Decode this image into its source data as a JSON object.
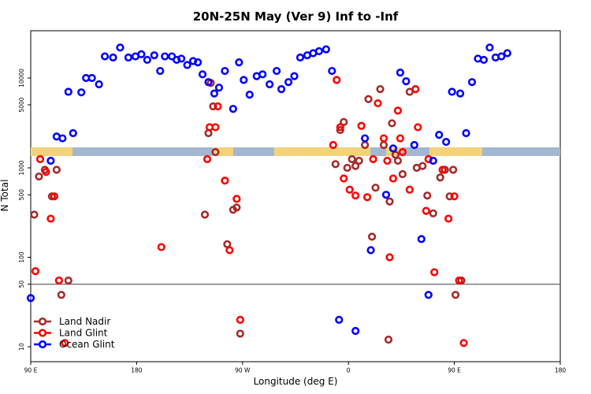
{
  "chart_data": {
    "type": "scatter",
    "title": "20N-25N May (Ver 9)   Inf to -Inf",
    "xlabel": "Longitude (deg E)",
    "ylabel": "N Total",
    "x_ticks": [
      "90 E",
      "180",
      "90 W",
      "0",
      "90 E",
      "180"
    ],
    "y_ticks_lower": [
      "10",
      "50",
      "100",
      "500",
      "1000"
    ],
    "y_ticks_upper": [
      "5000",
      "10000"
    ],
    "reference_line_value": 50,
    "legend": [
      {
        "label": "Land Nadir",
        "color": "#a52a2a"
      },
      {
        "label": "Land Glint",
        "color": "#ff0000"
      },
      {
        "label": "Ocean Glint",
        "color": "#0000ff"
      }
    ],
    "series": [
      {
        "name": "Land Nadir",
        "color": "#a52a2a",
        "points": [
          [
            93,
            300
          ],
          [
            97,
            800
          ],
          [
            102,
            950
          ],
          [
            108,
            480
          ],
          [
            112,
            950
          ],
          [
            116,
            38
          ],
          [
            122,
            55
          ],
          [
            238,
            300
          ],
          [
            241,
            2400
          ],
          [
            243,
            8800
          ],
          [
            245,
            4800
          ],
          [
            247,
            1500
          ],
          [
            257,
            140
          ],
          [
            262,
            340
          ],
          [
            265,
            360
          ],
          [
            268,
            14
          ],
          [
            349,
            1100
          ],
          [
            353,
            2600
          ],
          [
            356,
            3200
          ],
          [
            359,
            1000
          ],
          [
            363,
            1250
          ],
          [
            366,
            1050
          ],
          [
            369,
            1200
          ],
          [
            374,
            1800
          ],
          [
            377,
            5800
          ],
          [
            380,
            170
          ],
          [
            383,
            600
          ],
          [
            387,
            7500
          ],
          [
            390,
            1800
          ],
          [
            394,
            12
          ],
          [
            395,
            420
          ],
          [
            397,
            3100
          ],
          [
            400,
            1400
          ],
          [
            402,
            1200
          ],
          [
            406,
            850
          ],
          [
            412,
            7000
          ],
          [
            418,
            1000
          ],
          [
            423,
            1050
          ],
          [
            427,
            490
          ],
          [
            432,
            310
          ],
          [
            438,
            780
          ],
          [
            442,
            950
          ],
          [
            446,
            480
          ],
          [
            449,
            950
          ],
          [
            451,
            38
          ],
          [
            456,
            55
          ]
        ]
      },
      {
        "name": "Land Glint",
        "color": "#ff0000",
        "points": [
          [
            94,
            70
          ],
          [
            98,
            1250
          ],
          [
            103,
            900
          ],
          [
            107,
            270
          ],
          [
            110,
            480
          ],
          [
            114,
            55
          ],
          [
            119,
            11
          ],
          [
            201,
            130
          ],
          [
            240,
            1250
          ],
          [
            242,
            2800
          ],
          [
            247,
            2800
          ],
          [
            249,
            4800
          ],
          [
            255,
            720
          ],
          [
            259,
            120
          ],
          [
            265,
            450
          ],
          [
            268,
            20
          ],
          [
            347,
            1800
          ],
          [
            350,
            9500
          ],
          [
            353,
            2800
          ],
          [
            356,
            760
          ],
          [
            361,
            570
          ],
          [
            366,
            490
          ],
          [
            371,
            2900
          ],
          [
            376,
            470
          ],
          [
            381,
            1250
          ],
          [
            385,
            5200
          ],
          [
            390,
            2100
          ],
          [
            393,
            1200
          ],
          [
            395,
            100
          ],
          [
            398,
            760
          ],
          [
            402,
            4300
          ],
          [
            404,
            2100
          ],
          [
            406,
            1500
          ],
          [
            412,
            570
          ],
          [
            417,
            7500
          ],
          [
            419,
            2800
          ],
          [
            426,
            330
          ],
          [
            428,
            1250
          ],
          [
            433,
            68
          ],
          [
            440,
            950
          ],
          [
            445,
            270
          ],
          [
            450,
            480
          ],
          [
            454,
            55
          ],
          [
            458,
            11
          ]
        ]
      },
      {
        "name": "Ocean Glint",
        "color": "#0000ff",
        "points": [
          [
            90,
            35
          ],
          [
            107,
            1200
          ],
          [
            112,
            2200
          ],
          [
            117,
            2100
          ],
          [
            122,
            7000
          ],
          [
            126,
            2400
          ],
          [
            133,
            6900
          ],
          [
            137,
            10000
          ],
          [
            142,
            10000
          ],
          [
            148,
            8500
          ],
          [
            153,
            17500
          ],
          [
            160,
            17000
          ],
          [
            166,
            22000
          ],
          [
            173,
            17000
          ],
          [
            179,
            17500
          ],
          [
            184,
            18500
          ],
          [
            189,
            16000
          ],
          [
            195,
            18000
          ],
          [
            200,
            12000
          ],
          [
            204,
            17500
          ],
          [
            210,
            17500
          ],
          [
            214,
            16000
          ],
          [
            218,
            16500
          ],
          [
            223,
            14000
          ],
          [
            228,
            15500
          ],
          [
            232,
            15000
          ],
          [
            236,
            11000
          ],
          [
            241,
            9000
          ],
          [
            246,
            6700
          ],
          [
            250,
            7800
          ],
          [
            255,
            12000
          ],
          [
            262,
            4500
          ],
          [
            267,
            15000
          ],
          [
            271,
            9500
          ],
          [
            276,
            6500
          ],
          [
            282,
            10500
          ],
          [
            287,
            11000
          ],
          [
            293,
            8500
          ],
          [
            299,
            12000
          ],
          [
            303,
            7500
          ],
          [
            309,
            9000
          ],
          [
            314,
            10500
          ],
          [
            319,
            17000
          ],
          [
            325,
            18000
          ],
          [
            330,
            19000
          ],
          [
            335,
            20000
          ],
          [
            341,
            21000
          ],
          [
            346,
            12000
          ],
          [
            352,
            20
          ],
          [
            366,
            15
          ],
          [
            374,
            2100
          ],
          [
            379,
            120
          ],
          [
            392,
            500
          ],
          [
            398,
            1650
          ],
          [
            404,
            11500
          ],
          [
            409,
            9200
          ],
          [
            416,
            1800
          ],
          [
            422,
            160
          ],
          [
            428,
            38
          ],
          [
            432,
            1200
          ],
          [
            437,
            2300
          ],
          [
            443,
            1950
          ],
          [
            448,
            7000
          ],
          [
            455,
            6700
          ],
          [
            460,
            2400
          ],
          [
            465,
            9000
          ],
          [
            470,
            16500
          ],
          [
            475,
            16000
          ],
          [
            480,
            22000
          ],
          [
            485,
            17000
          ],
          [
            490,
            17500
          ],
          [
            495,
            19000
          ]
        ]
      }
    ]
  }
}
